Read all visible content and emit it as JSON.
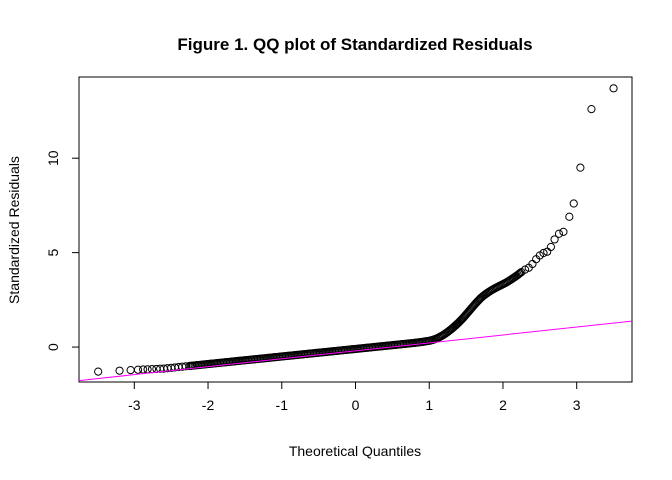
{
  "chart_data": {
    "type": "scatter",
    "title": "Figure 1. QQ plot of Standardized Residuals",
    "xlabel": "Theoretical Quantiles",
    "ylabel": "Standardized Residuals",
    "xlim": [
      -3.75,
      3.75
    ],
    "ylim": [
      -1.85,
      14.3
    ],
    "x_ticks": [
      -3,
      -2,
      -1,
      0,
      1,
      2,
      3
    ],
    "y_ticks": [
      0,
      5,
      10
    ],
    "grid": false,
    "point_color": "#000000",
    "reference_line": {
      "intercept": -0.2,
      "slope": 0.42,
      "color": "#ff00ff"
    },
    "series": [
      {
        "x": [
          -3.49,
          -3.2,
          -3.05,
          -2.95,
          -2.88,
          -2.82,
          -2.76,
          -2.7,
          -2.65,
          -2.6,
          -2.55,
          -2.5,
          -2.45,
          -2.4,
          -2.35,
          -2.3,
          -2.25,
          -2.2,
          -2.1,
          -2.0,
          -1.9,
          -1.8,
          -1.7,
          -1.6,
          -1.5,
          -1.4,
          -1.3,
          -1.2,
          -1.1,
          -1.0,
          -0.9,
          -0.8,
          -0.7,
          -0.6,
          -0.5,
          -0.4,
          -0.3,
          -0.2,
          -0.1,
          0.0,
          0.1,
          0.2,
          0.3,
          0.4,
          0.5,
          0.6,
          0.7,
          0.8,
          0.9,
          1.0,
          1.05,
          1.1,
          1.15,
          1.2,
          1.25,
          1.3,
          1.35,
          1.4,
          1.45,
          1.5,
          1.55,
          1.6,
          1.65,
          1.7,
          1.75,
          1.8,
          1.85,
          1.9,
          1.95,
          2.0,
          2.05,
          2.1,
          2.15,
          2.2,
          2.25,
          2.3,
          2.35,
          2.4,
          2.45,
          2.5,
          2.55,
          2.6,
          2.65,
          2.7,
          2.76,
          2.82,
          2.9,
          2.96,
          3.05,
          3.2,
          3.5
        ],
        "y": [
          -1.3,
          -1.25,
          -1.22,
          -1.2,
          -1.19,
          -1.18,
          -1.17,
          -1.16,
          -1.15,
          -1.14,
          -1.12,
          -1.1,
          -1.08,
          -1.06,
          -1.04,
          -1.02,
          -1.0,
          -0.98,
          -0.94,
          -0.9,
          -0.86,
          -0.82,
          -0.78,
          -0.74,
          -0.7,
          -0.66,
          -0.62,
          -0.58,
          -0.54,
          -0.5,
          -0.46,
          -0.42,
          -0.38,
          -0.34,
          -0.3,
          -0.26,
          -0.22,
          -0.18,
          -0.14,
          -0.1,
          -0.06,
          -0.02,
          0.02,
          0.06,
          0.1,
          0.14,
          0.18,
          0.22,
          0.27,
          0.33,
          0.38,
          0.45,
          0.55,
          0.66,
          0.8,
          0.95,
          1.12,
          1.3,
          1.5,
          1.72,
          1.95,
          2.18,
          2.4,
          2.6,
          2.76,
          2.9,
          3.02,
          3.13,
          3.23,
          3.33,
          3.43,
          3.55,
          3.68,
          3.82,
          3.97,
          4.1,
          4.2,
          4.4,
          4.65,
          4.85,
          4.98,
          5.05,
          5.3,
          5.7,
          6.0,
          6.1,
          6.9,
          7.6,
          9.5,
          12.6,
          13.7
        ]
      }
    ]
  }
}
